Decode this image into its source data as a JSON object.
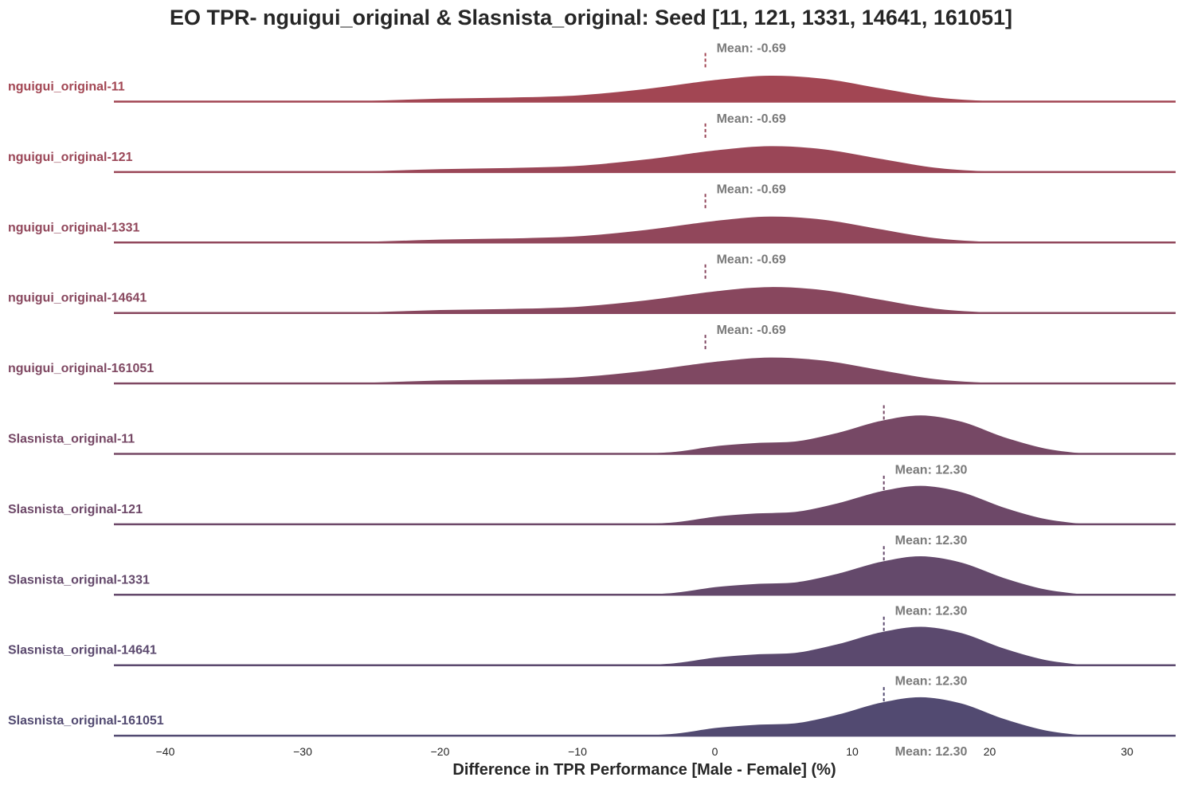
{
  "chart_data": {
    "type": "ridgeline",
    "title": "EO TPR- nguigui_original & Slasnista_original: Seed [11, 121, 1331, 14641, 161051]",
    "xlabel": "Difference in TPR Performance [Male - Female] (%)",
    "xlim": [
      -40,
      33
    ],
    "xticks": [
      -40,
      -30,
      -20,
      -10,
      0,
      10,
      20,
      30
    ],
    "tick_labels": [
      "−40",
      "−30",
      "−20",
      "−10",
      "0",
      "10",
      "20",
      "30"
    ],
    "grid": false,
    "series": [
      {
        "name": "nguigui_original-11",
        "mean": -0.69,
        "mean_label": "Mean: -0.69",
        "color": "#a24653",
        "density": [
          [
            -31,
            0
          ],
          [
            -25,
            0.05
          ],
          [
            -20,
            0.11
          ],
          [
            -15,
            0.14
          ],
          [
            -10,
            0.2
          ],
          [
            -5,
            0.38
          ],
          [
            0,
            0.63
          ],
          [
            4,
            0.75
          ],
          [
            8,
            0.66
          ],
          [
            12,
            0.4
          ],
          [
            16,
            0.15
          ],
          [
            20,
            0.04
          ],
          [
            24,
            0
          ]
        ]
      },
      {
        "name": "nguigui_original-121",
        "mean": -0.69,
        "mean_label": "Mean: -0.69",
        "color": "#9a4657",
        "density": [
          [
            -31,
            0
          ],
          [
            -25,
            0.05
          ],
          [
            -20,
            0.11
          ],
          [
            -15,
            0.14
          ],
          [
            -10,
            0.2
          ],
          [
            -5,
            0.38
          ],
          [
            0,
            0.63
          ],
          [
            4,
            0.75
          ],
          [
            8,
            0.66
          ],
          [
            12,
            0.4
          ],
          [
            16,
            0.15
          ],
          [
            20,
            0.04
          ],
          [
            24,
            0
          ]
        ]
      },
      {
        "name": "nguigui_original-1331",
        "mean": -0.69,
        "mean_label": "Mean: -0.69",
        "color": "#91475b",
        "density": [
          [
            -31,
            0
          ],
          [
            -25,
            0.05
          ],
          [
            -20,
            0.11
          ],
          [
            -15,
            0.14
          ],
          [
            -10,
            0.2
          ],
          [
            -5,
            0.38
          ],
          [
            0,
            0.63
          ],
          [
            4,
            0.75
          ],
          [
            8,
            0.66
          ],
          [
            12,
            0.4
          ],
          [
            16,
            0.15
          ],
          [
            20,
            0.04
          ],
          [
            24,
            0
          ]
        ]
      },
      {
        "name": "nguigui_original-14641",
        "mean": -0.69,
        "mean_label": "Mean: -0.69",
        "color": "#88475e",
        "density": [
          [
            -31,
            0
          ],
          [
            -25,
            0.05
          ],
          [
            -20,
            0.11
          ],
          [
            -15,
            0.14
          ],
          [
            -10,
            0.2
          ],
          [
            -5,
            0.38
          ],
          [
            0,
            0.63
          ],
          [
            4,
            0.75
          ],
          [
            8,
            0.66
          ],
          [
            12,
            0.4
          ],
          [
            16,
            0.15
          ],
          [
            20,
            0.04
          ],
          [
            24,
            0
          ]
        ]
      },
      {
        "name": "nguigui_original-161051",
        "mean": -0.69,
        "mean_label": "Mean: -0.69",
        "color": "#7f4862",
        "density": [
          [
            -31,
            0
          ],
          [
            -25,
            0.05
          ],
          [
            -20,
            0.11
          ],
          [
            -15,
            0.14
          ],
          [
            -10,
            0.2
          ],
          [
            -5,
            0.38
          ],
          [
            0,
            0.63
          ],
          [
            4,
            0.75
          ],
          [
            8,
            0.66
          ],
          [
            12,
            0.4
          ],
          [
            16,
            0.15
          ],
          [
            20,
            0.04
          ],
          [
            24,
            0
          ]
        ]
      },
      {
        "name": "Slasnista_original-11",
        "mean": 12.3,
        "mean_label": "Mean: 12.30",
        "color": "#764865",
        "density": [
          [
            -7,
            0
          ],
          [
            -3,
            0.08
          ],
          [
            0,
            0.24
          ],
          [
            3,
            0.33
          ],
          [
            6,
            0.38
          ],
          [
            9,
            0.62
          ],
          [
            12,
            0.94
          ],
          [
            15,
            1.1
          ],
          [
            18,
            0.92
          ],
          [
            21,
            0.5
          ],
          [
            24,
            0.18
          ],
          [
            27,
            0.03
          ],
          [
            29,
            0
          ]
        ]
      },
      {
        "name": "Slasnista_original-121",
        "mean": 12.3,
        "mean_label": "Mean: 12.30",
        "color": "#6d4868",
        "density": [
          [
            -7,
            0
          ],
          [
            -3,
            0.08
          ],
          [
            0,
            0.24
          ],
          [
            3,
            0.33
          ],
          [
            6,
            0.38
          ],
          [
            9,
            0.62
          ],
          [
            12,
            0.94
          ],
          [
            15,
            1.1
          ],
          [
            18,
            0.92
          ],
          [
            21,
            0.5
          ],
          [
            24,
            0.18
          ],
          [
            27,
            0.03
          ],
          [
            29,
            0
          ]
        ]
      },
      {
        "name": "Slasnista_original-1331",
        "mean": 12.3,
        "mean_label": "Mean: 12.30",
        "color": "#64496b",
        "density": [
          [
            -7,
            0
          ],
          [
            -3,
            0.08
          ],
          [
            0,
            0.24
          ],
          [
            3,
            0.33
          ],
          [
            6,
            0.38
          ],
          [
            9,
            0.62
          ],
          [
            12,
            0.94
          ],
          [
            15,
            1.1
          ],
          [
            18,
            0.92
          ],
          [
            21,
            0.5
          ],
          [
            24,
            0.18
          ],
          [
            27,
            0.03
          ],
          [
            29,
            0
          ]
        ]
      },
      {
        "name": "Slasnista_original-14641",
        "mean": 12.3,
        "mean_label": "Mean: 12.30",
        "color": "#5b496e",
        "density": [
          [
            -7,
            0
          ],
          [
            -3,
            0.08
          ],
          [
            0,
            0.24
          ],
          [
            3,
            0.33
          ],
          [
            6,
            0.38
          ],
          [
            9,
            0.62
          ],
          [
            12,
            0.94
          ],
          [
            15,
            1.1
          ],
          [
            18,
            0.92
          ],
          [
            21,
            0.5
          ],
          [
            24,
            0.18
          ],
          [
            27,
            0.03
          ],
          [
            29,
            0
          ]
        ]
      },
      {
        "name": "Slasnista_original-161051",
        "mean": 12.3,
        "mean_label": "Mean: 12.30",
        "color": "#524a71",
        "density": [
          [
            -7,
            0
          ],
          [
            -3,
            0.08
          ],
          [
            0,
            0.24
          ],
          [
            3,
            0.33
          ],
          [
            6,
            0.38
          ],
          [
            9,
            0.62
          ],
          [
            12,
            0.94
          ],
          [
            15,
            1.1
          ],
          [
            18,
            0.92
          ],
          [
            21,
            0.5
          ],
          [
            24,
            0.18
          ],
          [
            27,
            0.03
          ],
          [
            29,
            0
          ]
        ]
      }
    ]
  }
}
